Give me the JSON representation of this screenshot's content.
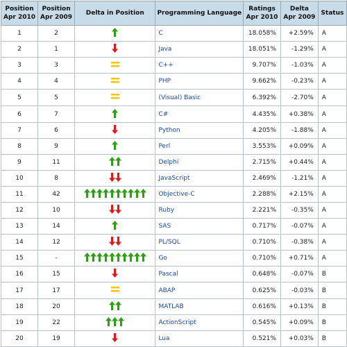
{
  "table": {
    "headers": [
      [
        "Position",
        "Apr 2010"
      ],
      [
        "Position",
        "Apr 2009"
      ],
      [
        "Delta in Position"
      ],
      [
        "Programming Language"
      ],
      [
        "Ratings",
        "Apr 2010"
      ],
      [
        "Delta",
        "Apr 2009"
      ],
      [
        "Status"
      ]
    ],
    "rows": [
      {
        "pos2010": "1",
        "pos2009": "2",
        "trend": "up",
        "count": 1,
        "language": "C",
        "rating": "18.058%",
        "delta": "+2.59%",
        "status": "A"
      },
      {
        "pos2010": "2",
        "pos2009": "1",
        "trend": "down",
        "count": 1,
        "language": "Java",
        "rating": "18.051%",
        "delta": "-1.29%",
        "status": "A"
      },
      {
        "pos2010": "3",
        "pos2009": "3",
        "trend": "same",
        "count": 1,
        "language": "C++",
        "rating": "9.707%",
        "delta": "-1.03%",
        "status": "A"
      },
      {
        "pos2010": "4",
        "pos2009": "4",
        "trend": "same",
        "count": 1,
        "language": "PHP",
        "rating": "9.662%",
        "delta": "-0.23%",
        "status": "A"
      },
      {
        "pos2010": "5",
        "pos2009": "5",
        "trend": "same",
        "count": 1,
        "language": "(Visual) Basic",
        "rating": "6.392%",
        "delta": "-2.70%",
        "status": "A"
      },
      {
        "pos2010": "6",
        "pos2009": "7",
        "trend": "up",
        "count": 1,
        "language": "C#",
        "rating": "4.435%",
        "delta": "+0.38%",
        "status": "A"
      },
      {
        "pos2010": "7",
        "pos2009": "6",
        "trend": "down",
        "count": 1,
        "language": "Python",
        "rating": "4.205%",
        "delta": "-1.88%",
        "status": "A"
      },
      {
        "pos2010": "8",
        "pos2009": "9",
        "trend": "up",
        "count": 1,
        "language": "Perl",
        "rating": "3.553%",
        "delta": "+0.09%",
        "status": "A"
      },
      {
        "pos2010": "9",
        "pos2009": "11",
        "trend": "up",
        "count": 2,
        "language": "Delphi",
        "rating": "2.715%",
        "delta": "+0.44%",
        "status": "A"
      },
      {
        "pos2010": "10",
        "pos2009": "8",
        "trend": "down",
        "count": 2,
        "language": "JavaScript",
        "rating": "2.469%",
        "delta": "-1.21%",
        "status": "A"
      },
      {
        "pos2010": "11",
        "pos2009": "42",
        "trend": "up",
        "count": 10,
        "language": "Objective-C",
        "rating": "2.288%",
        "delta": "+2.15%",
        "status": "A"
      },
      {
        "pos2010": "12",
        "pos2009": "10",
        "trend": "down",
        "count": 2,
        "language": "Ruby",
        "rating": "2.221%",
        "delta": "-0.35%",
        "status": "A"
      },
      {
        "pos2010": "13",
        "pos2009": "14",
        "trend": "up",
        "count": 1,
        "language": "SAS",
        "rating": "0.717%",
        "delta": "-0.07%",
        "status": "A"
      },
      {
        "pos2010": "14",
        "pos2009": "12",
        "trend": "down",
        "count": 2,
        "language": "PL/SQL",
        "rating": "0.710%",
        "delta": "-0.38%",
        "status": "A"
      },
      {
        "pos2010": "15",
        "pos2009": "-",
        "trend": "up",
        "count": 10,
        "language": "Go",
        "rating": "0.710%",
        "delta": "+0.71%",
        "status": "A"
      },
      {
        "pos2010": "16",
        "pos2009": "15",
        "trend": "down",
        "count": 1,
        "language": "Pascal",
        "rating": "0.648%",
        "delta": "-0.07%",
        "status": "B"
      },
      {
        "pos2010": "17",
        "pos2009": "17",
        "trend": "same",
        "count": 1,
        "language": "ABAP",
        "rating": "0.625%",
        "delta": "-0.03%",
        "status": "B"
      },
      {
        "pos2010": "18",
        "pos2009": "20",
        "trend": "up",
        "count": 2,
        "language": "MATLAB",
        "rating": "0.616%",
        "delta": "+0.13%",
        "status": "B"
      },
      {
        "pos2010": "19",
        "pos2009": "22",
        "trend": "up",
        "count": 3,
        "language": "ActionScript",
        "rating": "0.545%",
        "delta": "+0.09%",
        "status": "B"
      },
      {
        "pos2010": "20",
        "pos2009": "19",
        "trend": "down",
        "count": 1,
        "language": "Lua",
        "rating": "0.521%",
        "delta": "+0.03%",
        "status": "B"
      }
    ]
  },
  "colors": {
    "header_bg": "#c7dbe8",
    "link": "#1a4ba8",
    "up_arrow": "#2aa012",
    "down_arrow": "#e01818",
    "same_marker": "#f5c400"
  }
}
